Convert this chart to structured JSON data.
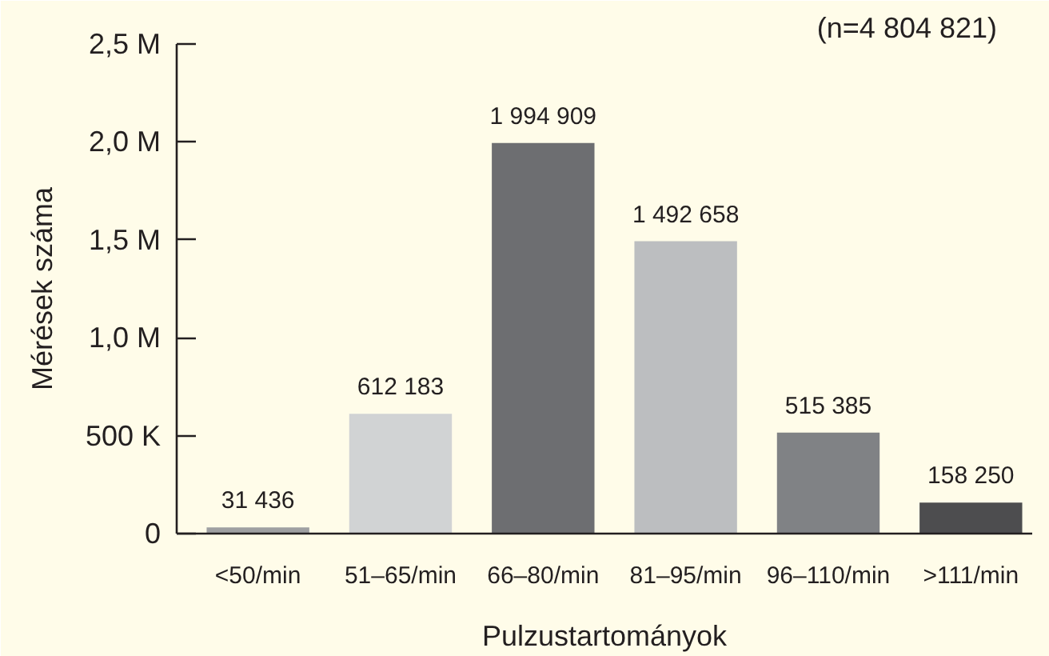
{
  "chart_data": {
    "type": "bar",
    "xlabel": "Pulzustartományok",
    "ylabel": "Mérések száma",
    "categories": [
      "<50/min",
      "51–65/min",
      "66–80/min",
      "81–95/min",
      "96–110/min",
      ">111/min"
    ],
    "values": [
      31436,
      612183,
      1994909,
      1492658,
      515385,
      158250
    ],
    "colors": [
      "#9fa0a2",
      "#d1d3d4",
      "#6d6e71",
      "#bcbec0",
      "#808285",
      "#4d4d4f"
    ],
    "value_labels": [
      "31 436",
      "612 183",
      "1 994 909",
      "1 492 658",
      "515 385",
      "158 250"
    ],
    "ylim": [
      0,
      2500000
    ],
    "yticks": [
      0,
      {
        "value": 500000,
        "label": "500 K"
      },
      {
        "value": 1000000,
        "label": "1,0 M"
      },
      {
        "value": 1500000,
        "label": "1,5 M"
      },
      {
        "value": 2000000,
        "label": "2,0 M"
      },
      {
        "value": 2500000,
        "label": "2,5 M"
      }
    ],
    "annotations": [
      "(n=4 804 821)"
    ]
  }
}
